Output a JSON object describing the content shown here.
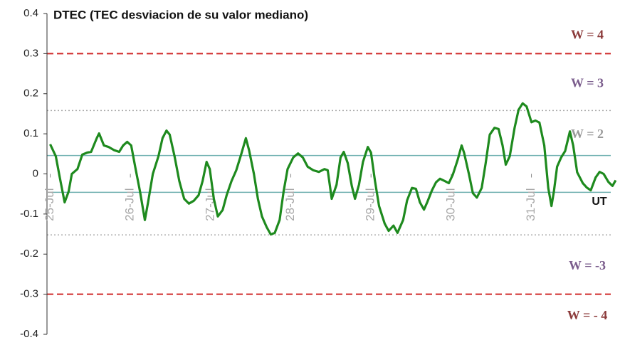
{
  "chart_data": {
    "type": "line",
    "title": "DTEC (TEC desviacion de su valor mediano)",
    "x_unit_label": "UT",
    "xlim": [
      -0.04,
      7.06
    ],
    "xticks": [
      {
        "value": 0,
        "label": "25-Jul"
      },
      {
        "value": 1,
        "label": "26-Jul"
      },
      {
        "value": 2,
        "label": "27-Jul"
      },
      {
        "value": 3,
        "label": "28-Jul"
      },
      {
        "value": 4,
        "label": "29-Jul"
      },
      {
        "value": 5,
        "label": "30-Jul"
      },
      {
        "value": 6,
        "label": "31-Jul"
      }
    ],
    "ylim": [
      -0.4,
      0.4
    ],
    "yticks": [
      0.4,
      0.3,
      0.2,
      0.1,
      0,
      -0.1,
      -0.2,
      -0.3,
      -0.4
    ],
    "reference_lines": [
      {
        "value": 0.3,
        "style": "dashed",
        "color": "#d02a2a",
        "label": "W = 4",
        "label_color": "#8b3a3a"
      },
      {
        "value": 0.158,
        "style": "dotted",
        "color": "#aaaaaa",
        "label": "W = 3",
        "label_color": "#7a5c8c"
      },
      {
        "value": 0.046,
        "style": "solid",
        "color": "#6fb0b0",
        "label": "W = 2",
        "label_color": "#9a9a9a"
      },
      {
        "value": -0.046,
        "style": "solid",
        "color": "#6fb0b0"
      },
      {
        "value": -0.152,
        "style": "dotted",
        "color": "#aaaaaa",
        "label": "W = -3",
        "label_color": "#7a5c8c"
      },
      {
        "value": -0.3,
        "style": "dashed",
        "color": "#d02a2a",
        "label": "W = - 4",
        "label_color": "#8b3a3a"
      }
    ],
    "series": [
      {
        "name": "DTEC",
        "color": "#1e8a1e",
        "x": [
          0.0,
          0.07,
          0.12,
          0.18,
          0.23,
          0.27,
          0.34,
          0.4,
          0.46,
          0.51,
          0.58,
          0.61,
          0.67,
          0.73,
          0.8,
          0.86,
          0.91,
          0.96,
          1.01,
          1.06,
          1.12,
          1.18,
          1.22,
          1.28,
          1.35,
          1.4,
          1.45,
          1.49,
          1.55,
          1.61,
          1.67,
          1.73,
          1.79,
          1.85,
          1.9,
          1.95,
          1.99,
          2.04,
          2.09,
          2.15,
          2.2,
          2.26,
          2.32,
          2.38,
          2.44,
          2.48,
          2.54,
          2.59,
          2.64,
          2.7,
          2.75,
          2.8,
          2.86,
          2.91,
          2.96,
          3.03,
          3.09,
          3.15,
          3.21,
          3.28,
          3.35,
          3.42,
          3.46,
          3.51,
          3.57,
          3.62,
          3.66,
          3.71,
          3.76,
          3.8,
          3.85,
          3.9,
          3.96,
          4.0,
          4.05,
          4.1,
          4.17,
          4.22,
          4.28,
          4.33,
          4.4,
          4.45,
          4.51,
          4.56,
          4.61,
          4.66,
          4.7,
          4.76,
          4.81,
          4.86,
          4.92,
          4.97,
          5.02,
          5.08,
          5.13,
          5.16,
          5.22,
          5.27,
          5.32,
          5.38,
          5.43,
          5.48,
          5.54,
          5.59,
          5.64,
          5.68,
          5.73,
          5.79,
          5.84,
          5.89,
          5.94,
          6.0,
          6.05,
          6.1,
          6.16,
          6.21,
          6.25,
          6.28,
          6.32,
          6.37,
          6.42,
          6.48,
          6.52,
          6.57,
          6.64,
          6.69,
          6.74,
          6.8,
          6.85,
          6.9,
          6.96,
          7.01,
          7.05
        ],
        "values": [
          0.074,
          0.044,
          -0.009,
          -0.071,
          -0.044,
          0,
          0.012,
          0.048,
          0.053,
          0.055,
          0.089,
          0.101,
          0.071,
          0.067,
          0.059,
          0.055,
          0.071,
          0.08,
          0.071,
          0.018,
          -0.044,
          -0.115,
          -0.071,
          0,
          0.044,
          0.089,
          0.108,
          0.098,
          0.044,
          -0.018,
          -0.062,
          -0.074,
          -0.067,
          -0.053,
          -0.018,
          0.03,
          0.012,
          -0.062,
          -0.106,
          -0.09,
          -0.053,
          -0.018,
          0.009,
          0.048,
          0.089,
          0.059,
          0,
          -0.062,
          -0.106,
          -0.133,
          -0.151,
          -0.147,
          -0.115,
          -0.044,
          0.012,
          0.041,
          0.051,
          0.041,
          0.018,
          0.009,
          0.005,
          0.012,
          0.009,
          -0.062,
          -0.027,
          0.041,
          0.055,
          0.027,
          -0.03,
          -0.062,
          -0.027,
          0.03,
          0.067,
          0.053,
          -0.018,
          -0.08,
          -0.124,
          -0.142,
          -0.129,
          -0.147,
          -0.115,
          -0.066,
          -0.035,
          -0.037,
          -0.071,
          -0.089,
          -0.071,
          -0.041,
          -0.021,
          -0.012,
          -0.018,
          -0.023,
          -0.002,
          0.035,
          0.071,
          0.053,
          0,
          -0.048,
          -0.059,
          -0.035,
          0.027,
          0.098,
          0.115,
          0.112,
          0.071,
          0.023,
          0.044,
          0.115,
          0.16,
          0.176,
          0.168,
          0.129,
          0.133,
          0.128,
          0.071,
          -0.035,
          -0.08,
          -0.044,
          0.018,
          0.041,
          0.057,
          0.106,
          0.071,
          0.004,
          -0.023,
          -0.034,
          -0.041,
          -0.009,
          0.005,
          0,
          -0.02,
          -0.03,
          -0.016
        ]
      }
    ]
  }
}
